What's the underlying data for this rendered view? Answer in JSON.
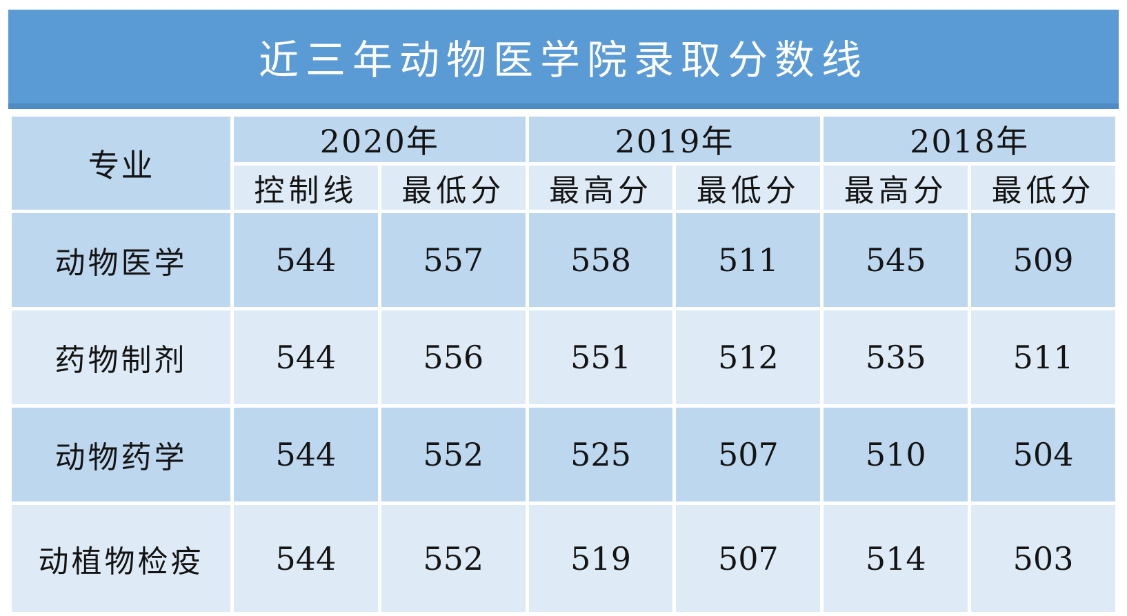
{
  "title_bar": {
    "text": "近三年动物医学院录取分数线",
    "bg_color": "#5B9BD5",
    "edge_color": "#4E8AC4",
    "text_color": "#FFFFFF"
  },
  "table": {
    "colors": {
      "header_dark": "#BDD7EE",
      "header_light": "#DEEBF7",
      "row_dark": "#BDD7EE",
      "row_light": "#DEEBF7",
      "grid_line": "#FFFFFF",
      "text": "#141414"
    },
    "header": {
      "major_label": "专业",
      "years": [
        {
          "label": "2020年",
          "sub": [
            "控制线",
            "最低分"
          ]
        },
        {
          "label": "2019年",
          "sub": [
            "最高分",
            "最低分"
          ]
        },
        {
          "label": "2018年",
          "sub": [
            "最高分",
            "最低分"
          ]
        }
      ]
    },
    "rows": [
      {
        "major": "动物医学",
        "values": [
          "544",
          "557",
          "558",
          "511",
          "545",
          "509"
        ]
      },
      {
        "major": "药物制剂",
        "values": [
          "544",
          "556",
          "551",
          "512",
          "535",
          "511"
        ]
      },
      {
        "major": "动物药学",
        "values": [
          "544",
          "552",
          "525",
          "507",
          "510",
          "504"
        ]
      },
      {
        "major": "动植物检疫",
        "values": [
          "544",
          "552",
          "519",
          "507",
          "514",
          "503"
        ]
      }
    ]
  },
  "chart_data": {
    "type": "table",
    "title": "近三年动物医学院录取分数线",
    "columns": [
      "专业",
      "2020年 控制线",
      "2020年 最低分",
      "2019年 最高分",
      "2019年 最低分",
      "2018年 最高分",
      "2018年 最低分"
    ],
    "rows": [
      [
        "动物医学",
        544,
        557,
        558,
        511,
        545,
        509
      ],
      [
        "药物制剂",
        544,
        556,
        551,
        512,
        535,
        511
      ],
      [
        "动物药学",
        544,
        552,
        525,
        507,
        510,
        504
      ],
      [
        "动植物检疫",
        544,
        552,
        519,
        507,
        514,
        503
      ]
    ]
  }
}
